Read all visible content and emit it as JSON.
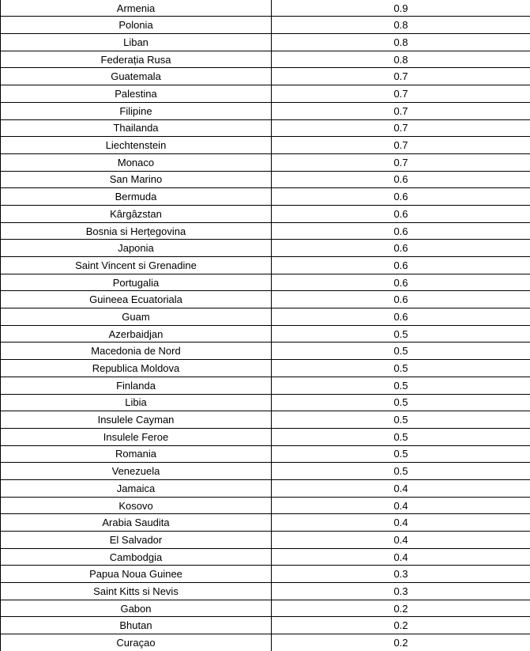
{
  "table": {
    "columns": [
      "country",
      "value"
    ],
    "text_color": "#000000",
    "border_color": "#000000",
    "rows": [
      {
        "country": "Armenia",
        "value": "0.9"
      },
      {
        "country": "Polonia",
        "value": "0.8"
      },
      {
        "country": "Liban",
        "value": "0.8"
      },
      {
        "country": "Federația Rusa",
        "value": "0.8"
      },
      {
        "country": "Guatemala",
        "value": "0.7"
      },
      {
        "country": "Palestina",
        "value": "0.7"
      },
      {
        "country": "Filipine",
        "value": "0.7"
      },
      {
        "country": "Thailanda",
        "value": "0.7"
      },
      {
        "country": "Liechtenstein",
        "value": "0.7"
      },
      {
        "country": "Monaco",
        "value": "0.7"
      },
      {
        "country": "San Marino",
        "value": "0.6"
      },
      {
        "country": "Bermuda",
        "value": "0.6"
      },
      {
        "country": "Kârgâzstan",
        "value": "0.6"
      },
      {
        "country": "Bosnia si Herțegovina",
        "value": "0.6"
      },
      {
        "country": "Japonia",
        "value": "0.6"
      },
      {
        "country": "Saint Vincent si Grenadine",
        "value": "0.6"
      },
      {
        "country": "Portugalia",
        "value": "0.6"
      },
      {
        "country": "Guineea Ecuatoriala",
        "value": "0.6"
      },
      {
        "country": "Guam",
        "value": "0.6"
      },
      {
        "country": "Azerbaidjan",
        "value": "0.5"
      },
      {
        "country": "Macedonia de Nord",
        "value": "0.5"
      },
      {
        "country": "Republica Moldova",
        "value": "0.5"
      },
      {
        "country": "Finlanda",
        "value": "0.5"
      },
      {
        "country": "Libia",
        "value": "0.5"
      },
      {
        "country": "Insulele Cayman",
        "value": "0.5"
      },
      {
        "country": "Insulele Feroe",
        "value": "0.5"
      },
      {
        "country": "Romania",
        "value": "0.5"
      },
      {
        "country": "Venezuela",
        "value": "0.5"
      },
      {
        "country": "Jamaica",
        "value": "0.4"
      },
      {
        "country": "Kosovo",
        "value": "0.4"
      },
      {
        "country": "Arabia Saudita",
        "value": "0.4"
      },
      {
        "country": "El Salvador",
        "value": "0.4"
      },
      {
        "country": "Cambodgia",
        "value": "0.4"
      },
      {
        "country": "Papua Noua Guinee",
        "value": "0.3"
      },
      {
        "country": "Saint Kitts si Nevis",
        "value": "0.3"
      },
      {
        "country": "Gabon",
        "value": "0.2"
      },
      {
        "country": "Bhutan",
        "value": "0.2"
      },
      {
        "country": "Curaçao",
        "value": "0.2"
      }
    ]
  }
}
